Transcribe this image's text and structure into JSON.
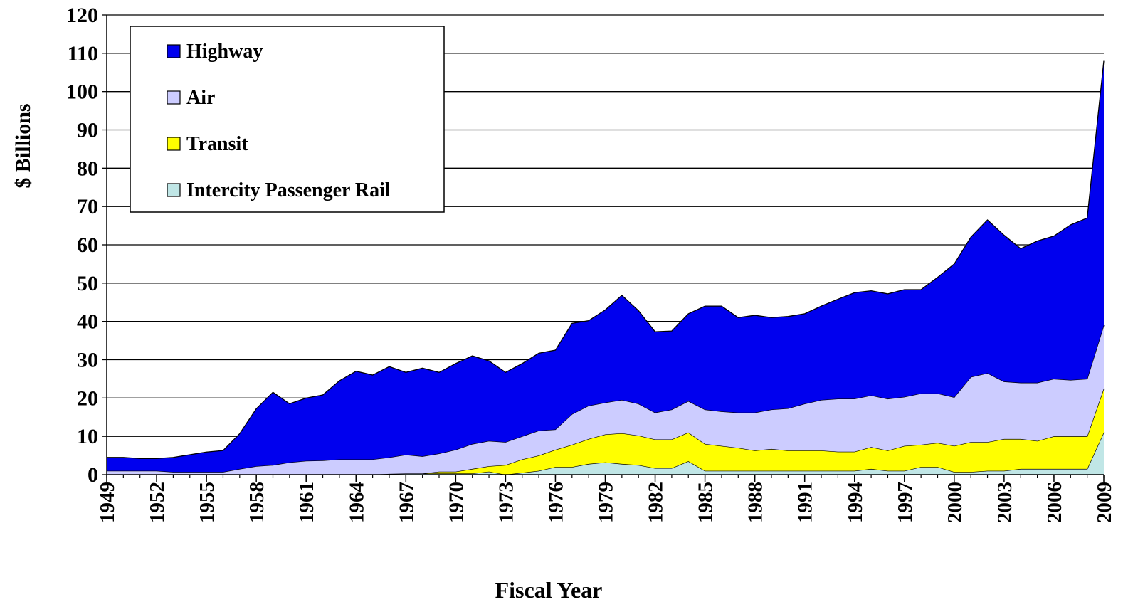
{
  "chart_data": {
    "type": "stacked_area",
    "xlabel": "Fiscal Year",
    "ylabel": "$ Billions",
    "x": [
      1949,
      1950,
      1951,
      1952,
      1953,
      1954,
      1955,
      1956,
      1957,
      1958,
      1959,
      1960,
      1961,
      1962,
      1963,
      1964,
      1965,
      1966,
      1967,
      1968,
      1969,
      1970,
      1971,
      1972,
      1973,
      1974,
      1975,
      1976,
      1977,
      1978,
      1979,
      1980,
      1981,
      1982,
      1983,
      1984,
      1985,
      1986,
      1987,
      1988,
      1989,
      1990,
      1991,
      1992,
      1993,
      1994,
      1995,
      1996,
      1997,
      1998,
      1999,
      2000,
      2001,
      2002,
      2003,
      2004,
      2005,
      2006,
      2007,
      2008,
      2009
    ],
    "xlim": [
      1949,
      2009
    ],
    "xticks": [
      1949,
      1952,
      1955,
      1958,
      1961,
      1964,
      1967,
      1970,
      1973,
      1976,
      1979,
      1982,
      1985,
      1988,
      1991,
      1994,
      1997,
      2000,
      2003,
      2006,
      2009
    ],
    "ylim": [
      0,
      120
    ],
    "yticks": [
      0,
      10,
      20,
      30,
      40,
      50,
      60,
      70,
      80,
      90,
      100,
      110,
      120
    ],
    "grid": true,
    "legend": "upper left",
    "series": [
      {
        "name": "Highway",
        "color": "#0000ee",
        "values": [
          3.5,
          3.5,
          3.2,
          3.2,
          3.8,
          4.5,
          5.2,
          5.6,
          9.2,
          15,
          19,
          15.3,
          16.4,
          17.1,
          20.5,
          23,
          22,
          23.7,
          21.5,
          23,
          21.2,
          22.5,
          23,
          20.9,
          18.2,
          19,
          20.2,
          20.7,
          23.7,
          22.2,
          24.2,
          27.3,
          24.3,
          21.1,
          20.5,
          22.8,
          27,
          27.5,
          24.8,
          25.4,
          24,
          24,
          23.5,
          24.5,
          26,
          27.7,
          27.3,
          27.4,
          28,
          27.1,
          30.3,
          34.8,
          36.5,
          40,
          38.2,
          35,
          37,
          37.3,
          40.5,
          42,
          69
        ]
      },
      {
        "name": "Air",
        "color": "#ccccff",
        "values": [
          1,
          1,
          1,
          1,
          0.7,
          0.7,
          0.7,
          0.7,
          1.5,
          2.2,
          2.5,
          3.2,
          3.6,
          3.7,
          4,
          4,
          4,
          4.3,
          4.9,
          4.5,
          4.7,
          5.7,
          6.5,
          6.6,
          6,
          6,
          6.5,
          5.3,
          8,
          8.7,
          8.3,
          8.7,
          8.3,
          7,
          7.8,
          8.2,
          9,
          9,
          9.2,
          9.9,
          10.3,
          11,
          12.2,
          13.2,
          13.8,
          13.8,
          13.5,
          13.5,
          12.8,
          13.4,
          12.9,
          12.7,
          17,
          18,
          15,
          14.7,
          15.2,
          15,
          14.7,
          15,
          16.5
        ]
      },
      {
        "name": "Transit",
        "color": "#ffff00",
        "values": [
          0,
          0,
          0,
          0,
          0,
          0,
          0,
          0,
          0,
          0,
          0,
          0,
          0,
          0,
          0,
          0,
          0,
          0,
          0,
          0,
          0.5,
          0.5,
          1.2,
          1.4,
          2.5,
          3.5,
          4,
          4.5,
          5.8,
          6.5,
          7.3,
          8,
          7.7,
          7.5,
          7.5,
          7.5,
          7,
          6.5,
          6,
          5.3,
          5.7,
          5.3,
          5.3,
          5.3,
          5,
          5,
          5.7,
          5.3,
          6.5,
          5.8,
          6.3,
          6.8,
          7.8,
          7.5,
          8.3,
          7.8,
          7.3,
          8.5,
          8.5,
          8.5,
          11.5
        ]
      },
      {
        "name": "Intercity Passenger Rail",
        "color": "#c0e6e6",
        "values": [
          0,
          0,
          0,
          0,
          0,
          0,
          0,
          0,
          0,
          0,
          0,
          0,
          0,
          0,
          0,
          0,
          0,
          0.2,
          0.3,
          0.3,
          0.3,
          0.3,
          0.3,
          0.8,
          0,
          0.5,
          1,
          2,
          2,
          2.8,
          3.2,
          2.8,
          2.5,
          1.7,
          1.7,
          3.5,
          1,
          1,
          1,
          1,
          1,
          1,
          1,
          1,
          1,
          1,
          1.5,
          1,
          1,
          2,
          2,
          0.7,
          0.7,
          1,
          1,
          1.5,
          1.5,
          1.5,
          1.5,
          1.5,
          11
        ]
      }
    ]
  }
}
